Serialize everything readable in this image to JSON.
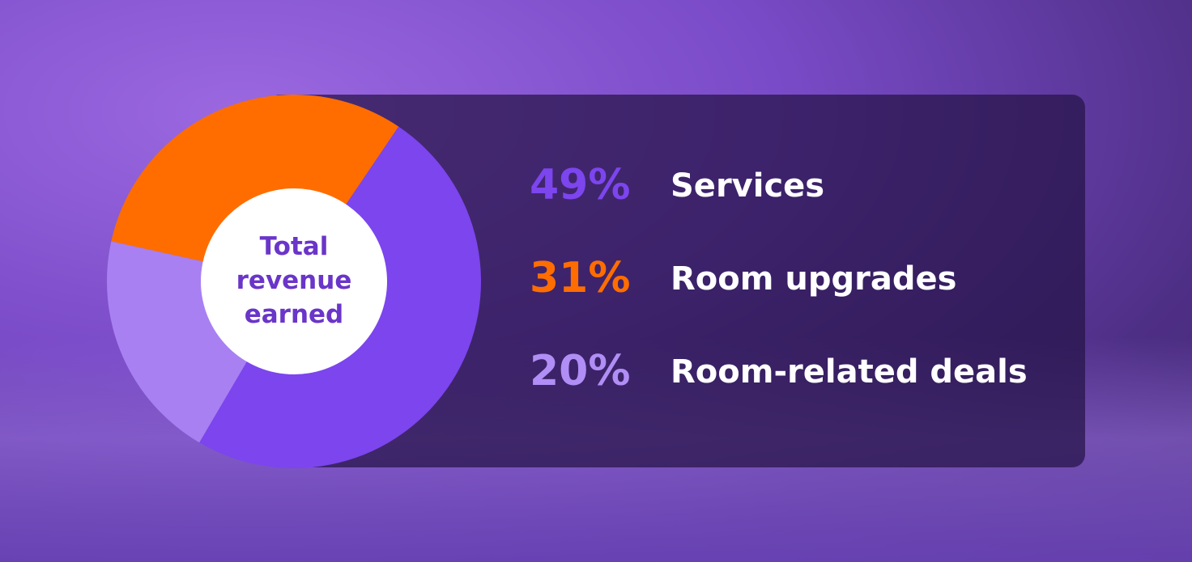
{
  "chart_data": {
    "type": "pie",
    "center_label": "Total revenue earned",
    "categories": [
      "Services",
      "Room upgrades",
      "Room-related deals"
    ],
    "values": [
      49,
      31,
      20
    ],
    "value_labels": [
      "49%",
      "31%",
      "20%"
    ],
    "colors": [
      "#7c45ee",
      "#ff6d00",
      "#a880f2"
    ],
    "label_colors": [
      "#7c45ee",
      "#ff6d00",
      "#b18ef5"
    ]
  }
}
